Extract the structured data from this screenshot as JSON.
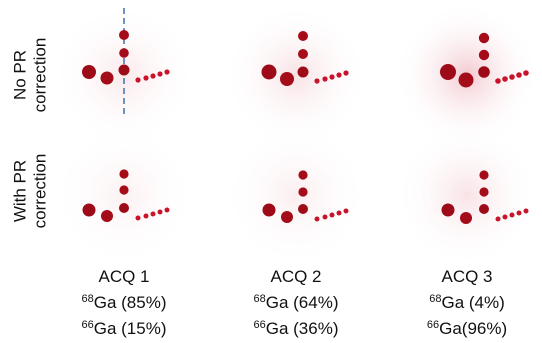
{
  "rows": {
    "no_pr": {
      "line1": "No PR",
      "line2": "correction"
    },
    "with_pr": {
      "line1": "With PR",
      "line2": "correction"
    }
  },
  "columns": [
    {
      "title": "ACQ 1",
      "ga68_mass": "68",
      "ga68_text": "Ga (85%)",
      "ga66_mass": "66",
      "ga66_text": "Ga (15%)"
    },
    {
      "title": "ACQ 2",
      "ga68_mass": "68",
      "ga68_text": "Ga (64%)",
      "ga66_mass": "66",
      "ga66_text": "Ga (36%)"
    },
    {
      "title": "ACQ 3",
      "ga68_mass": "68",
      "ga68_text": "Ga (4%)",
      "ga66_mass": "66",
      "ga66_text": "Ga(96%)"
    }
  ],
  "colors": {
    "hot_spot": "#b00018",
    "halo": "#e8a0a8",
    "dashed_line": "#4a78b8"
  }
}
